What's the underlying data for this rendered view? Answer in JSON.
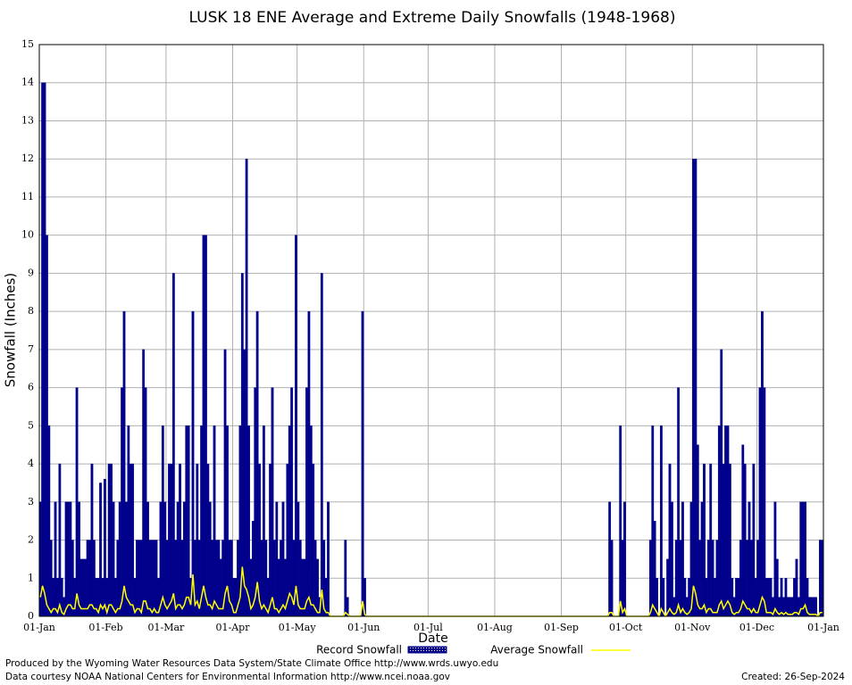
{
  "chart_data": {
    "type": "bar",
    "title": "LUSK 18 ENE Average and Extreme Daily Snowfalls (1948-1968)",
    "x_label": "Date",
    "y_label": "Snowfall (Inches)",
    "xlim": [
      0,
      365
    ],
    "xticks": [
      {
        "value": 0,
        "label": "01-Jan"
      },
      {
        "value": 31,
        "label": "01-Feb"
      },
      {
        "value": 59,
        "label": "01-Mar"
      },
      {
        "value": 90,
        "label": "01-Apr"
      },
      {
        "value": 120,
        "label": "01-May"
      },
      {
        "value": 151,
        "label": "01-Jun"
      },
      {
        "value": 181,
        "label": "01-Jul"
      },
      {
        "value": 212,
        "label": "01-Aug"
      },
      {
        "value": 243,
        "label": "01-Sep"
      },
      {
        "value": 273,
        "label": "01-Oct"
      },
      {
        "value": 304,
        "label": "01-Nov"
      },
      {
        "value": 334,
        "label": "01-Dec"
      },
      {
        "value": 365,
        "label": "01-Jan"
      }
    ],
    "ylim": [
      0,
      15
    ],
    "yticks": [
      0,
      1,
      2,
      3,
      4,
      5,
      6,
      7,
      8,
      9,
      10,
      11,
      12,
      13,
      14,
      15
    ],
    "grid": true,
    "series": [
      {
        "name": "Record Snowfall",
        "type": "bar",
        "color": "#00008b",
        "values": [
          3,
          14,
          14,
          10,
          5,
          2,
          1,
          3,
          1,
          4,
          1,
          0.5,
          3,
          3,
          3,
          2,
          1,
          6,
          3,
          1.5,
          1.5,
          1.5,
          2,
          2,
          4,
          2,
          1,
          1,
          3.5,
          1,
          3.6,
          1,
          4,
          4,
          3,
          1,
          2,
          3,
          6,
          8,
          3,
          5,
          4,
          4,
          1,
          2,
          2,
          2,
          7,
          6,
          3,
          2,
          2,
          2,
          2,
          1,
          3,
          5,
          3,
          2,
          4,
          4,
          9,
          2,
          3,
          4,
          2,
          3,
          5,
          5,
          1,
          8,
          2,
          4,
          2,
          5,
          10,
          10,
          4,
          3,
          2,
          5,
          2,
          2,
          1.5,
          2,
          7,
          5,
          2,
          2,
          1,
          1,
          2,
          5,
          9,
          7,
          12,
          5,
          1.5,
          2.5,
          6,
          8,
          4,
          2,
          5,
          2,
          1,
          4,
          6,
          2,
          3,
          1.5,
          2,
          3,
          1.5,
          4,
          5,
          6,
          2,
          10,
          3,
          2,
          1.5,
          1.5,
          6,
          8,
          5,
          4,
          2,
          1.5,
          0.5,
          9,
          2,
          1,
          3,
          0,
          0,
          0,
          0,
          0,
          0,
          0,
          2,
          0.5,
          0,
          0,
          0,
          0,
          0,
          0,
          8,
          1,
          0,
          0,
          0,
          0,
          0,
          0,
          0,
          0,
          0,
          0,
          0,
          0,
          0,
          0,
          0,
          0,
          0,
          0,
          0,
          0,
          0,
          0,
          0,
          0,
          0,
          0,
          0,
          0,
          0,
          0,
          0,
          0,
          0,
          0,
          0,
          0,
          0,
          0,
          0,
          0,
          0,
          0,
          0,
          0,
          0,
          0,
          0,
          0,
          0,
          0,
          0,
          0,
          0,
          0,
          0,
          0,
          0,
          0,
          0,
          0,
          0,
          0,
          0,
          0,
          0,
          0,
          0,
          0,
          0,
          0,
          0,
          0,
          0,
          0,
          0,
          0,
          0,
          0,
          0,
          0,
          0,
          0,
          0,
          0,
          0,
          0,
          0,
          0,
          0,
          0,
          0,
          0,
          0,
          0,
          0,
          0,
          0,
          0,
          0,
          0,
          0,
          0,
          0,
          0,
          0,
          0,
          0,
          0,
          0,
          0,
          0,
          0,
          0,
          3,
          2,
          0,
          0,
          0,
          5,
          2,
          3,
          0,
          0,
          0,
          0,
          0,
          0,
          0,
          0,
          0,
          0,
          0,
          2,
          5,
          2.5,
          1,
          0,
          5,
          1,
          0,
          1.5,
          4,
          3,
          0.5,
          2,
          6,
          2,
          3,
          1,
          0.5,
          1,
          3,
          12,
          12,
          4.5,
          2,
          3,
          4,
          1,
          2,
          4,
          2,
          1,
          2,
          5,
          7,
          4,
          5,
          5,
          4,
          1,
          0.5,
          1,
          1,
          2,
          4.5,
          4,
          2,
          3,
          2,
          4,
          1,
          2,
          6,
          8,
          6,
          1,
          1,
          1,
          0.5,
          3,
          1.5,
          0.5,
          1,
          0.5,
          1,
          0.5,
          0.5,
          0.5,
          1,
          1.5,
          0.5,
          3,
          3,
          3,
          1,
          0.5,
          0.5,
          0.5,
          0.5,
          0,
          2,
          2
        ]
      },
      {
        "name": "Average Snowfall",
        "type": "line",
        "color": "#ffff00",
        "values": [
          0.5,
          0.8,
          0.6,
          0.3,
          0.2,
          0.1,
          0.2,
          0.2,
          0.1,
          0.3,
          0.1,
          0.05,
          0.2,
          0.3,
          0.3,
          0.2,
          0.2,
          0.6,
          0.3,
          0.2,
          0.2,
          0.2,
          0.2,
          0.3,
          0.3,
          0.2,
          0.2,
          0.1,
          0.3,
          0.2,
          0.3,
          0.1,
          0.3,
          0.3,
          0.2,
          0.1,
          0.2,
          0.2,
          0.4,
          0.8,
          0.5,
          0.4,
          0.3,
          0.3,
          0.1,
          0.2,
          0.2,
          0.1,
          0.4,
          0.4,
          0.2,
          0.2,
          0.1,
          0.2,
          0.1,
          0.1,
          0.3,
          0.5,
          0.3,
          0.2,
          0.3,
          0.4,
          0.6,
          0.2,
          0.3,
          0.3,
          0.2,
          0.3,
          0.5,
          0.5,
          0.3,
          1.1,
          0.3,
          0.4,
          0.2,
          0.5,
          0.8,
          0.5,
          0.3,
          0.3,
          0.2,
          0.4,
          0.3,
          0.2,
          0.2,
          0.2,
          0.6,
          0.8,
          0.4,
          0.3,
          0.1,
          0.1,
          0.3,
          0.5,
          1.3,
          0.8,
          0.7,
          0.5,
          0.2,
          0.3,
          0.5,
          0.9,
          0.4,
          0.2,
          0.3,
          0.2,
          0.1,
          0.3,
          0.5,
          0.2,
          0.2,
          0.1,
          0.2,
          0.3,
          0.2,
          0.4,
          0.6,
          0.5,
          0.3,
          0.8,
          0.3,
          0.2,
          0.2,
          0.2,
          0.4,
          0.5,
          0.3,
          0.3,
          0.2,
          0.1,
          0.1,
          0.7,
          0.2,
          0.1,
          0.1,
          0,
          0,
          0,
          0,
          0,
          0,
          0,
          0.1,
          0.05,
          0,
          0,
          0,
          0,
          0,
          0,
          0.4,
          0.05,
          0,
          0,
          0,
          0,
          0,
          0,
          0,
          0,
          0,
          0,
          0,
          0,
          0,
          0,
          0,
          0,
          0,
          0,
          0,
          0,
          0,
          0,
          0,
          0,
          0,
          0,
          0,
          0,
          0,
          0,
          0,
          0,
          0,
          0,
          0,
          0,
          0,
          0,
          0,
          0,
          0,
          0,
          0,
          0,
          0,
          0,
          0,
          0,
          0,
          0,
          0,
          0,
          0,
          0,
          0,
          0,
          0,
          0,
          0,
          0,
          0,
          0,
          0,
          0,
          0,
          0,
          0,
          0,
          0,
          0,
          0,
          0,
          0,
          0,
          0,
          0,
          0,
          0,
          0,
          0,
          0,
          0,
          0,
          0,
          0,
          0,
          0,
          0,
          0,
          0,
          0,
          0,
          0,
          0,
          0,
          0,
          0,
          0,
          0,
          0,
          0,
          0,
          0,
          0,
          0,
          0,
          0,
          0,
          0,
          0,
          0,
          0,
          0,
          0.1,
          0.1,
          0,
          0,
          0,
          0.4,
          0.1,
          0.2,
          0,
          0,
          0,
          0,
          0,
          0,
          0,
          0,
          0,
          0,
          0,
          0.1,
          0.3,
          0.2,
          0.1,
          0,
          0.2,
          0.1,
          0,
          0.1,
          0.2,
          0.1,
          0.05,
          0.1,
          0.3,
          0.1,
          0.2,
          0.1,
          0.05,
          0.1,
          0.2,
          0.8,
          0.6,
          0.3,
          0.2,
          0.2,
          0.3,
          0.1,
          0.2,
          0.2,
          0.1,
          0.1,
          0.1,
          0.3,
          0.4,
          0.2,
          0.3,
          0.4,
          0.3,
          0.1,
          0.05,
          0.1,
          0.1,
          0.2,
          0.4,
          0.3,
          0.2,
          0.2,
          0.1,
          0.2,
          0.1,
          0.1,
          0.3,
          0.5,
          0.4,
          0.1,
          0.1,
          0.1,
          0.05,
          0.2,
          0.1,
          0.05,
          0.1,
          0.05,
          0.1,
          0.05,
          0.05,
          0.05,
          0.1,
          0.1,
          0.05,
          0.2,
          0.2,
          0.3,
          0.1,
          0.05,
          0.05,
          0.05,
          0.05,
          0,
          0.1,
          0.1
        ]
      }
    ],
    "footer_left": [
      "Produced by the Wyoming Water Resources Data System/State Climate Office http://www.wrds.uwyo.edu",
      "Data courtesy NOAA National Centers for Environmental Information http://www.ncei.noaa.gov"
    ],
    "footer_right": "Created:  26-Sep-2024"
  }
}
